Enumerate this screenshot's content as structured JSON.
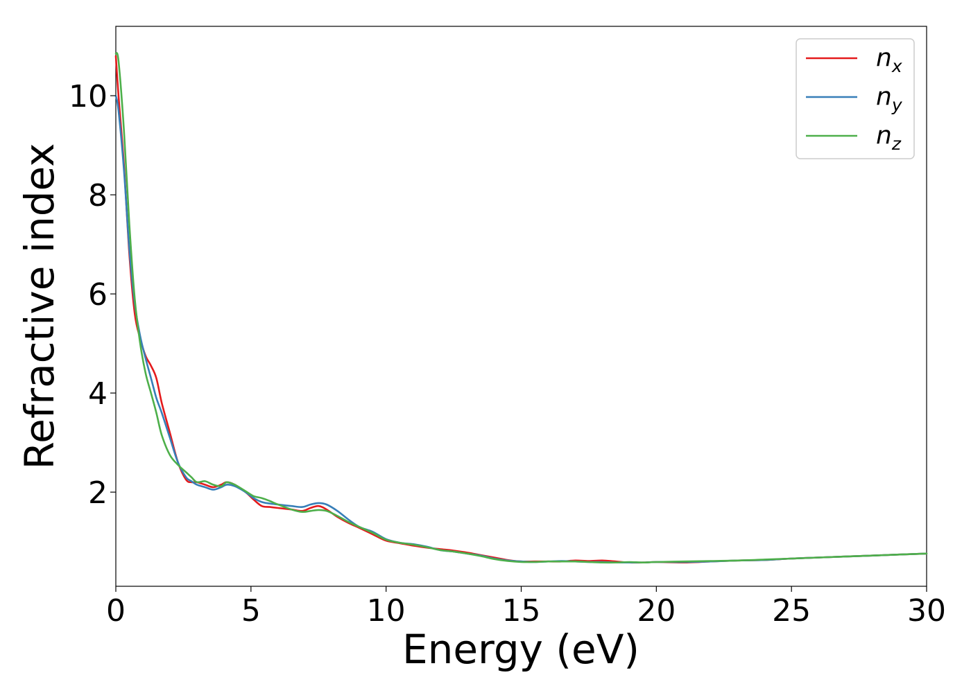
{
  "chart_data": {
    "type": "line",
    "title": "",
    "xlabel": "Energy (eV)",
    "ylabel": "Refractive index",
    "xlim": [
      0,
      30
    ],
    "ylim": [
      0.1,
      11.4
    ],
    "xticks": [
      0,
      5,
      10,
      15,
      20,
      25,
      30
    ],
    "yticks": [
      2,
      4,
      6,
      8,
      10
    ],
    "grid": false,
    "legend_position": "top-right",
    "series": [
      {
        "name": "n_x",
        "label_base": "n",
        "label_sub": "x",
        "color": "#e41a1c",
        "x": [
          0,
          0.1,
          0.3,
          0.5,
          0.7,
          0.9,
          1.1,
          1.3,
          1.5,
          1.7,
          2.0,
          2.3,
          2.6,
          2.8,
          3.0,
          3.3,
          3.6,
          3.9,
          4.1,
          4.4,
          4.8,
          5.1,
          5.4,
          5.7,
          6.0,
          6.5,
          6.9,
          7.2,
          7.5,
          7.8,
          8.2,
          8.6,
          9.0,
          9.5,
          10.0,
          10.5,
          11.0,
          11.5,
          12.0,
          12.5,
          13.0,
          13.5,
          14.0,
          14.5,
          15.0,
          15.5,
          16.0,
          16.5,
          17.0,
          17.5,
          18.0,
          18.5,
          19.0,
          19.5,
          20.0,
          21.0,
          22.0,
          23.0,
          24.0,
          25.0,
          26.0,
          27.0,
          28.0,
          29.0,
          30.0
        ],
        "values": [
          10.8,
          10.0,
          8.6,
          6.8,
          5.6,
          5.1,
          4.75,
          4.55,
          4.3,
          3.8,
          3.2,
          2.6,
          2.25,
          2.2,
          2.2,
          2.15,
          2.1,
          2.15,
          2.2,
          2.15,
          2.0,
          1.85,
          1.72,
          1.7,
          1.68,
          1.65,
          1.62,
          1.68,
          1.72,
          1.65,
          1.5,
          1.38,
          1.28,
          1.15,
          1.02,
          0.97,
          0.92,
          0.88,
          0.85,
          0.82,
          0.78,
          0.73,
          0.68,
          0.63,
          0.6,
          0.6,
          0.6,
          0.6,
          0.62,
          0.61,
          0.62,
          0.6,
          0.58,
          0.58,
          0.59,
          0.58,
          0.6,
          0.62,
          0.63,
          0.66,
          0.68,
          0.7,
          0.72,
          0.74,
          0.76
        ]
      },
      {
        "name": "n_y",
        "label_base": "n",
        "label_sub": "y",
        "color": "#377eb8",
        "x": [
          0,
          0.1,
          0.3,
          0.5,
          0.7,
          0.9,
          1.1,
          1.3,
          1.5,
          1.7,
          2.0,
          2.3,
          2.6,
          2.8,
          3.0,
          3.3,
          3.6,
          3.9,
          4.1,
          4.4,
          4.8,
          5.1,
          5.4,
          5.7,
          6.0,
          6.5,
          6.9,
          7.2,
          7.5,
          7.8,
          8.2,
          8.6,
          9.0,
          9.5,
          10.0,
          10.5,
          11.0,
          11.5,
          12.0,
          12.5,
          13.0,
          13.5,
          14.0,
          14.5,
          15.0,
          15.5,
          16.0,
          16.5,
          17.0,
          17.5,
          18.0,
          18.5,
          19.0,
          19.5,
          20.0,
          21.0,
          22.0,
          23.0,
          24.0,
          25.0,
          26.0,
          27.0,
          28.0,
          29.0,
          30.0
        ],
        "values": [
          10.0,
          9.7,
          8.5,
          6.9,
          5.8,
          5.15,
          4.7,
          4.3,
          3.9,
          3.6,
          3.1,
          2.6,
          2.3,
          2.22,
          2.15,
          2.1,
          2.05,
          2.1,
          2.15,
          2.12,
          2.0,
          1.88,
          1.8,
          1.77,
          1.75,
          1.72,
          1.7,
          1.75,
          1.78,
          1.75,
          1.62,
          1.45,
          1.3,
          1.2,
          1.05,
          0.98,
          0.95,
          0.9,
          0.83,
          0.8,
          0.76,
          0.72,
          0.66,
          0.62,
          0.6,
          0.59,
          0.6,
          0.61,
          0.6,
          0.59,
          0.59,
          0.58,
          0.58,
          0.58,
          0.59,
          0.59,
          0.6,
          0.62,
          0.63,
          0.66,
          0.68,
          0.7,
          0.72,
          0.74,
          0.76
        ]
      },
      {
        "name": "n_z",
        "label_base": "n",
        "label_sub": "z",
        "color": "#4daf4a",
        "x": [
          0,
          0.1,
          0.3,
          0.5,
          0.7,
          0.9,
          1.1,
          1.3,
          1.5,
          1.7,
          2.0,
          2.3,
          2.6,
          2.8,
          3.0,
          3.3,
          3.6,
          3.9,
          4.1,
          4.4,
          4.8,
          5.1,
          5.4,
          5.7,
          6.0,
          6.5,
          6.9,
          7.2,
          7.5,
          7.8,
          8.2,
          8.6,
          9.0,
          9.5,
          10.0,
          10.5,
          11.0,
          11.5,
          12.0,
          12.5,
          13.0,
          13.5,
          14.0,
          14.5,
          15.0,
          15.5,
          16.0,
          16.5,
          17.0,
          17.5,
          18.0,
          18.5,
          19.0,
          19.5,
          20.0,
          21.0,
          22.0,
          23.0,
          24.0,
          25.0,
          26.0,
          27.0,
          28.0,
          29.0,
          30.0
        ],
        "values": [
          10.85,
          10.7,
          9.3,
          7.4,
          5.9,
          5.0,
          4.4,
          4.0,
          3.6,
          3.15,
          2.75,
          2.55,
          2.4,
          2.3,
          2.2,
          2.22,
          2.15,
          2.12,
          2.2,
          2.15,
          2.02,
          1.92,
          1.88,
          1.82,
          1.75,
          1.65,
          1.6,
          1.62,
          1.64,
          1.62,
          1.52,
          1.4,
          1.3,
          1.18,
          1.04,
          0.98,
          0.94,
          0.89,
          0.83,
          0.8,
          0.76,
          0.71,
          0.65,
          0.61,
          0.59,
          0.59,
          0.6,
          0.6,
          0.6,
          0.59,
          0.58,
          0.58,
          0.59,
          0.58,
          0.59,
          0.6,
          0.61,
          0.62,
          0.64,
          0.66,
          0.68,
          0.7,
          0.72,
          0.74,
          0.76
        ]
      }
    ]
  }
}
